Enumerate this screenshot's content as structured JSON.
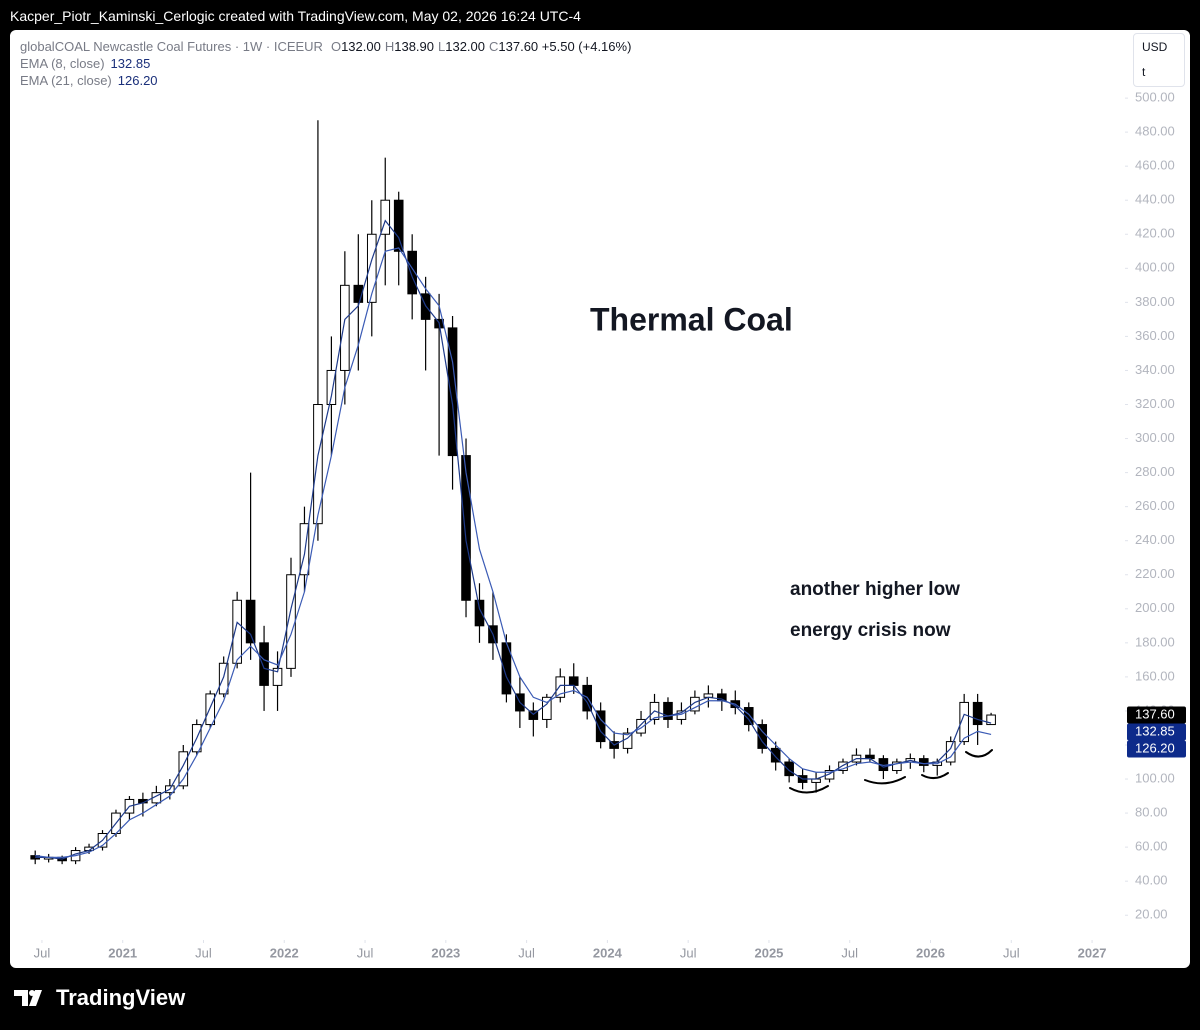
{
  "header": {
    "attribution": "Kacper_Piotr_Kaminski_Cerlogic created with TradingView.com, May 02, 2026 16:24 UTC-4"
  },
  "legend": {
    "symbol": "globalCOAL Newcastle Coal Futures · 1W · ICEEUR",
    "ohlc": [
      {
        "key": "O",
        "value": "132.00"
      },
      {
        "key": "H",
        "value": "138.90"
      },
      {
        "key": "L",
        "value": "132.00"
      },
      {
        "key": "C",
        "value": "137.60"
      }
    ],
    "change": "+5.50 (+4.16%)"
  },
  "toolbar": {
    "currency": "USD",
    "unit": "t"
  },
  "footer": {
    "brand": "TradingView"
  },
  "chart_data": {
    "type": "candlestick",
    "title": "Thermal Coal",
    "annotations": [
      "another higher low",
      "energy crisis now"
    ],
    "x": [
      "2020-06",
      "2020-07",
      "2020-08",
      "2020-09",
      "2020-10",
      "2020-11",
      "2020-12",
      "2021-01",
      "2021-02",
      "2021-03",
      "2021-04",
      "2021-05",
      "2021-06",
      "2021-07",
      "2021-08",
      "2021-09",
      "2021-10",
      "2021-11",
      "2021-12",
      "2022-01",
      "2022-02",
      "2022-03",
      "2022-04",
      "2022-05",
      "2022-06",
      "2022-07",
      "2022-08",
      "2022-09",
      "2022-10",
      "2022-11",
      "2022-12",
      "2023-01",
      "2023-02",
      "2023-03",
      "2023-04",
      "2023-05",
      "2023-06",
      "2023-07",
      "2023-08",
      "2023-09",
      "2023-10",
      "2023-11",
      "2023-12",
      "2024-01",
      "2024-02",
      "2024-03",
      "2024-04",
      "2024-05",
      "2024-06",
      "2024-07",
      "2024-08",
      "2024-09",
      "2024-10",
      "2024-11",
      "2024-12",
      "2025-01",
      "2025-02",
      "2025-03",
      "2025-04",
      "2025-05",
      "2025-06",
      "2025-07",
      "2025-08",
      "2025-09",
      "2025-10",
      "2025-11",
      "2025-12",
      "2026-01",
      "2026-02",
      "2026-03",
      "2026-04",
      "2026-05"
    ],
    "open": [
      55,
      53,
      54,
      52,
      58,
      60,
      68,
      80,
      88,
      86,
      92,
      96,
      116,
      132,
      150,
      168,
      205,
      180,
      155,
      165,
      220,
      250,
      320,
      340,
      390,
      380,
      420,
      440,
      410,
      385,
      370,
      365,
      290,
      205,
      190,
      180,
      150,
      140,
      135,
      148,
      160,
      155,
      140,
      122,
      118,
      127,
      135,
      145,
      135,
      140,
      148,
      150,
      146,
      142,
      132,
      118,
      110,
      102,
      98,
      100,
      105,
      110,
      114,
      112,
      105,
      110,
      112,
      108,
      110,
      122,
      145,
      132
    ],
    "high": [
      58,
      56,
      55,
      60,
      62,
      70,
      82,
      90,
      92,
      96,
      100,
      120,
      135,
      152,
      172,
      210,
      280,
      190,
      175,
      230,
      260,
      487,
      360,
      410,
      420,
      440,
      465,
      445,
      420,
      395,
      385,
      372,
      300,
      215,
      210,
      185,
      160,
      145,
      150,
      165,
      168,
      160,
      145,
      128,
      130,
      140,
      150,
      148,
      145,
      152,
      155,
      153,
      152,
      145,
      135,
      122,
      112,
      106,
      104,
      108,
      112,
      118,
      118,
      114,
      112,
      115,
      114,
      112,
      125,
      150,
      150,
      138.9
    ],
    "low": [
      50,
      51,
      50,
      50,
      56,
      58,
      66,
      76,
      78,
      84,
      88,
      94,
      114,
      130,
      148,
      165,
      170,
      140,
      140,
      160,
      210,
      240,
      290,
      320,
      340,
      360,
      390,
      390,
      370,
      340,
      290,
      270,
      195,
      180,
      170,
      145,
      130,
      125,
      130,
      145,
      150,
      135,
      118,
      112,
      115,
      125,
      132,
      130,
      132,
      138,
      142,
      140,
      138,
      128,
      115,
      105,
      98,
      94,
      92,
      98,
      103,
      108,
      110,
      100,
      103,
      106,
      104,
      102,
      108,
      120,
      120,
      132
    ],
    "close": [
      53,
      54,
      52,
      58,
      60,
      68,
      80,
      88,
      86,
      92,
      96,
      116,
      132,
      150,
      168,
      205,
      180,
      155,
      165,
      220,
      250,
      320,
      340,
      390,
      380,
      420,
      440,
      410,
      385,
      370,
      365,
      290,
      205,
      190,
      180,
      150,
      140,
      135,
      148,
      160,
      155,
      140,
      122,
      118,
      127,
      135,
      145,
      135,
      140,
      148,
      150,
      146,
      142,
      132,
      118,
      110,
      102,
      98,
      100,
      105,
      110,
      114,
      112,
      105,
      110,
      112,
      108,
      110,
      122,
      145,
      132,
      137.6
    ],
    "up_color": "#ffffff",
    "down_color": "#000000",
    "border_color": "#000000",
    "series": [
      {
        "name": "EMA (8, close)",
        "color": "#1e3a8a",
        "values": [
          54,
          54,
          53,
          56,
          58,
          64,
          74,
          84,
          86,
          90,
          94,
          108,
          124,
          142,
          160,
          192,
          185,
          165,
          163,
          200,
          232,
          290,
          325,
          370,
          378,
          405,
          428,
          418,
          395,
          378,
          368,
          320,
          240,
          200,
          185,
          160,
          145,
          138,
          144,
          155,
          155,
          145,
          128,
          120,
          124,
          132,
          140,
          137,
          139,
          145,
          148,
          147,
          143,
          135,
          122,
          113,
          105,
          100,
          100,
          103,
          108,
          112,
          112,
          107,
          109,
          111,
          109,
          110,
          118,
          138,
          135,
          132.85
        ]
      },
      {
        "name": "EMA (21, close)",
        "color": "#3b5bb5",
        "values": [
          55,
          54,
          54,
          55,
          57,
          61,
          68,
          76,
          80,
          85,
          90,
          100,
          114,
          130,
          146,
          170,
          178,
          170,
          167,
          185,
          210,
          255,
          290,
          330,
          355,
          385,
          410,
          412,
          400,
          388,
          378,
          345,
          280,
          235,
          210,
          180,
          160,
          148,
          145,
          150,
          152,
          148,
          135,
          127,
          126,
          130,
          136,
          137,
          138,
          142,
          146,
          146,
          144,
          138,
          128,
          120,
          112,
          106,
          104,
          104,
          106,
          109,
          110,
          108,
          109,
          110,
          109,
          109,
          113,
          124,
          128,
          126.2
        ]
      }
    ],
    "price_labels": [
      {
        "value": 137.6,
        "label": "137.60",
        "color": "#000000"
      },
      {
        "value": 132.85,
        "label": "132.85",
        "color": "#0d2a8a"
      },
      {
        "value": 126.2,
        "label": "126.20",
        "color": "#0d2a8a"
      }
    ],
    "xlim": [
      "2020-05",
      "2027-03"
    ],
    "xticks": [
      {
        "value": "2020-07",
        "label": "Jul"
      },
      {
        "value": "2021-01",
        "label": "2021"
      },
      {
        "value": "2021-07",
        "label": "Jul"
      },
      {
        "value": "2022-01",
        "label": "2022"
      },
      {
        "value": "2022-07",
        "label": "Jul"
      },
      {
        "value": "2023-01",
        "label": "2023"
      },
      {
        "value": "2023-07",
        "label": "Jul"
      },
      {
        "value": "2024-01",
        "label": "2024"
      },
      {
        "value": "2024-07",
        "label": "Jul"
      },
      {
        "value": "2025-01",
        "label": "2025"
      },
      {
        "value": "2025-07",
        "label": "Jul"
      },
      {
        "value": "2026-01",
        "label": "2026"
      },
      {
        "value": "2026-07",
        "label": "Jul"
      },
      {
        "value": "2027-01",
        "label": "2027"
      }
    ],
    "ylim": [
      -11,
      530
    ],
    "yticks": [
      {
        "value": 20,
        "label": "20.00"
      },
      {
        "value": 40,
        "label": "40.00"
      },
      {
        "value": 60,
        "label": "60.00"
      },
      {
        "value": 80,
        "label": "80.00"
      },
      {
        "value": 100,
        "label": "100.00"
      },
      {
        "value": 120,
        "label": "120.00"
      },
      {
        "value": 140,
        "label": "140.00"
      },
      {
        "value": 160,
        "label": "160.00"
      },
      {
        "value": 180,
        "label": "180.00"
      },
      {
        "value": 200,
        "label": "200.00"
      },
      {
        "value": 220,
        "label": "220.00"
      },
      {
        "value": 240,
        "label": "240.00"
      },
      {
        "value": 260,
        "label": "260.00"
      },
      {
        "value": 280,
        "label": "280.00"
      },
      {
        "value": 300,
        "label": "300.00"
      },
      {
        "value": 320,
        "label": "320.00"
      },
      {
        "value": 340,
        "label": "340.00"
      },
      {
        "value": 360,
        "label": "360.00"
      },
      {
        "value": 380,
        "label": "380.00"
      },
      {
        "value": 400,
        "label": "400.00"
      },
      {
        "value": 420,
        "label": "420.00"
      },
      {
        "value": 440,
        "label": "440.00"
      },
      {
        "value": 460,
        "label": "460.00"
      },
      {
        "value": 480,
        "label": "480.00"
      },
      {
        "value": 500,
        "label": "500.00"
      }
    ],
    "grid": false
  }
}
